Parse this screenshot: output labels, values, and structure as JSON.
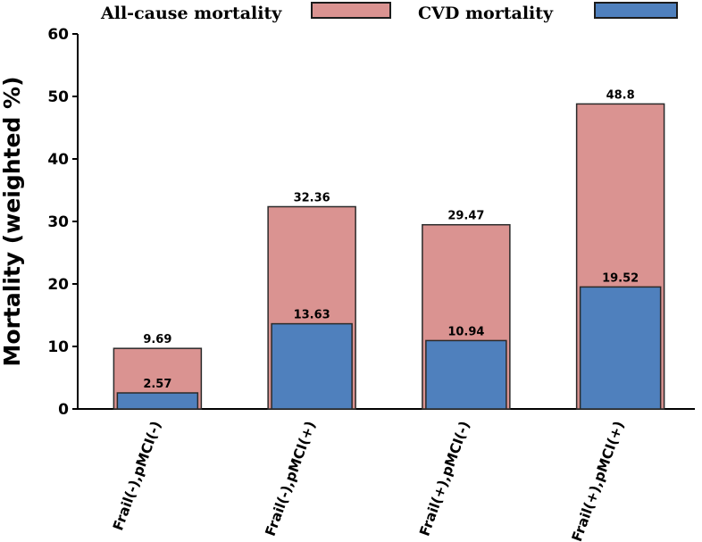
{
  "chart_data": {
    "type": "bar",
    "title": "",
    "xlabel": "",
    "ylabel": "Mortality (weighted %)",
    "ylim": [
      0,
      60
    ],
    "yticks": [
      0,
      10,
      20,
      30,
      40,
      50,
      60
    ],
    "grid": false,
    "legend_position": "top",
    "categories": [
      "Frail(-),pMCI(-)",
      "Frail(-),pMCI(+)",
      "Frail(+),pMCI(-)",
      "Frail(+),pMCI(+)"
    ],
    "series": [
      {
        "name": "All-cause mortality",
        "color": "#DA9391",
        "values": [
          9.69,
          32.36,
          29.47,
          48.8
        ],
        "labels": [
          "9.69",
          "32.36",
          "29.47",
          "48.8"
        ]
      },
      {
        "name": "CVD mortality",
        "color": "#4F80BD",
        "values": [
          2.57,
          13.63,
          10.94,
          19.52
        ],
        "labels": [
          "2.57",
          "13.63",
          "10.94",
          "19.52"
        ]
      }
    ]
  }
}
